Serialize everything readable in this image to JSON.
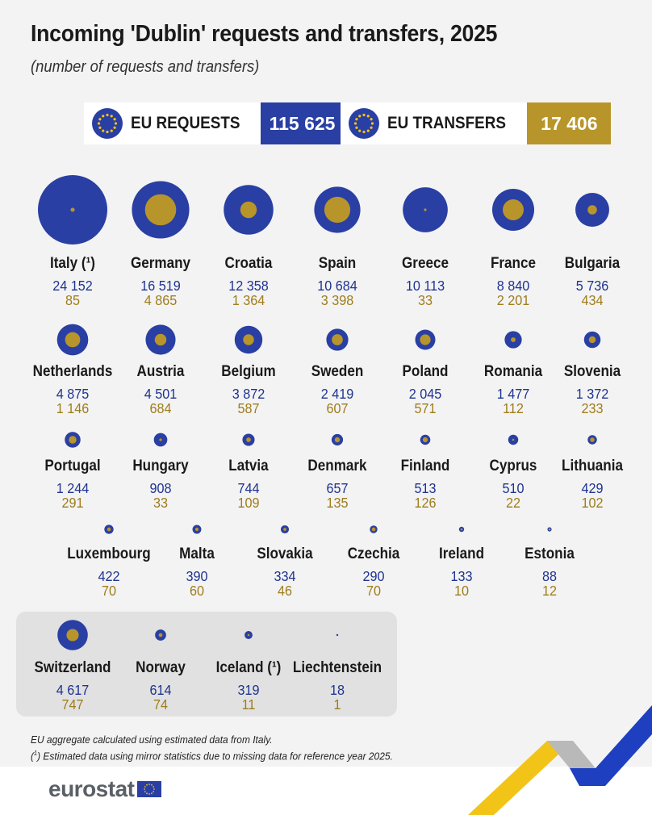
{
  "title": "Incoming 'Dublin' requests and transfers, 2025",
  "subtitle": "(number of requests and transfers)",
  "totals": {
    "requests_label": "EU REQUESTS",
    "requests_value": "115 625",
    "transfers_label": "EU TRANSFERS",
    "transfers_value": "17 406"
  },
  "colors": {
    "requests": "#2a3fa3",
    "transfers": "#b8952a",
    "request_text": "#1f3391",
    "transfer_text": "#9e7d1c"
  },
  "chart_data": {
    "type": "bubble",
    "series": [
      {
        "name": "EU REQUESTS",
        "key": "requests"
      },
      {
        "name": "EU TRANSFERS",
        "key": "transfers"
      }
    ],
    "countries": [
      {
        "name": "Italy (¹)",
        "requests": 24152,
        "transfers": 85,
        "requests_label": "24 152",
        "transfers_label": "85",
        "group": "EU"
      },
      {
        "name": "Germany",
        "requests": 16519,
        "transfers": 4865,
        "requests_label": "16 519",
        "transfers_label": "4 865",
        "group": "EU"
      },
      {
        "name": "Croatia",
        "requests": 12358,
        "transfers": 1364,
        "requests_label": "12 358",
        "transfers_label": "1 364",
        "group": "EU"
      },
      {
        "name": "Spain",
        "requests": 10684,
        "transfers": 3398,
        "requests_label": "10 684",
        "transfers_label": "3 398",
        "group": "EU"
      },
      {
        "name": "Greece",
        "requests": 10113,
        "transfers": 33,
        "requests_label": "10 113",
        "transfers_label": "33",
        "group": "EU"
      },
      {
        "name": "France",
        "requests": 8840,
        "transfers": 2201,
        "requests_label": "8 840",
        "transfers_label": "2 201",
        "group": "EU"
      },
      {
        "name": "Bulgaria",
        "requests": 5736,
        "transfers": 434,
        "requests_label": "5 736",
        "transfers_label": "434",
        "group": "EU"
      },
      {
        "name": "Netherlands",
        "requests": 4875,
        "transfers": 1146,
        "requests_label": "4 875",
        "transfers_label": "1 146",
        "group": "EU"
      },
      {
        "name": "Austria",
        "requests": 4501,
        "transfers": 684,
        "requests_label": "4 501",
        "transfers_label": "684",
        "group": "EU"
      },
      {
        "name": "Belgium",
        "requests": 3872,
        "transfers": 587,
        "requests_label": "3 872",
        "transfers_label": "587",
        "group": "EU"
      },
      {
        "name": "Sweden",
        "requests": 2419,
        "transfers": 607,
        "requests_label": "2 419",
        "transfers_label": "607",
        "group": "EU"
      },
      {
        "name": "Poland",
        "requests": 2045,
        "transfers": 571,
        "requests_label": "2 045",
        "transfers_label": "571",
        "group": "EU"
      },
      {
        "name": "Romania",
        "requests": 1477,
        "transfers": 112,
        "requests_label": "1 477",
        "transfers_label": "112",
        "group": "EU"
      },
      {
        "name": "Slovenia",
        "requests": 1372,
        "transfers": 233,
        "requests_label": "1 372",
        "transfers_label": "233",
        "group": "EU"
      },
      {
        "name": "Portugal",
        "requests": 1244,
        "transfers": 291,
        "requests_label": "1 244",
        "transfers_label": "291",
        "group": "EU"
      },
      {
        "name": "Hungary",
        "requests": 908,
        "transfers": 33,
        "requests_label": "908",
        "transfers_label": "33",
        "group": "EU"
      },
      {
        "name": "Latvia",
        "requests": 744,
        "transfers": 109,
        "requests_label": "744",
        "transfers_label": "109",
        "group": "EU"
      },
      {
        "name": "Denmark",
        "requests": 657,
        "transfers": 135,
        "requests_label": "657",
        "transfers_label": "135",
        "group": "EU"
      },
      {
        "name": "Finland",
        "requests": 513,
        "transfers": 126,
        "requests_label": "513",
        "transfers_label": "126",
        "group": "EU"
      },
      {
        "name": "Cyprus",
        "requests": 510,
        "transfers": 22,
        "requests_label": "510",
        "transfers_label": "22",
        "group": "EU"
      },
      {
        "name": "Lithuania",
        "requests": 429,
        "transfers": 102,
        "requests_label": "429",
        "transfers_label": "102",
        "group": "EU"
      },
      {
        "name": "Luxembourg",
        "requests": 422,
        "transfers": 70,
        "requests_label": "422",
        "transfers_label": "70",
        "group": "EU"
      },
      {
        "name": "Malta",
        "requests": 390,
        "transfers": 60,
        "requests_label": "390",
        "transfers_label": "60",
        "group": "EU"
      },
      {
        "name": "Slovakia",
        "requests": 334,
        "transfers": 46,
        "requests_label": "334",
        "transfers_label": "46",
        "group": "EU"
      },
      {
        "name": "Czechia",
        "requests": 290,
        "transfers": 70,
        "requests_label": "290",
        "transfers_label": "70",
        "group": "EU"
      },
      {
        "name": "Ireland",
        "requests": 133,
        "transfers": 10,
        "requests_label": "133",
        "transfers_label": "10",
        "group": "EU"
      },
      {
        "name": "Estonia",
        "requests": 88,
        "transfers": 12,
        "requests_label": "88",
        "transfers_label": "12",
        "group": "EU"
      },
      {
        "name": "Switzerland",
        "requests": 4617,
        "transfers": 747,
        "requests_label": "4 617",
        "transfers_label": "747",
        "group": "non-EU"
      },
      {
        "name": "Norway",
        "requests": 614,
        "transfers": 74,
        "requests_label": "614",
        "transfers_label": "74",
        "group": "non-EU"
      },
      {
        "name": "Iceland (¹)",
        "requests": 319,
        "transfers": 11,
        "requests_label": "319",
        "transfers_label": "11",
        "group": "non-EU"
      },
      {
        "name": "Liechtenstein",
        "requests": 18,
        "transfers": 1,
        "requests_label": "18",
        "transfers_label": "1",
        "group": "non-EU"
      }
    ]
  },
  "footnotes": {
    "note1": "EU aggregate calculated using estimated data from Italy.",
    "note2_marker": "1",
    "note2": " Estimated data using mirror statistics due to missing data for reference year 2025."
  },
  "logo": {
    "text": "eurostat"
  }
}
